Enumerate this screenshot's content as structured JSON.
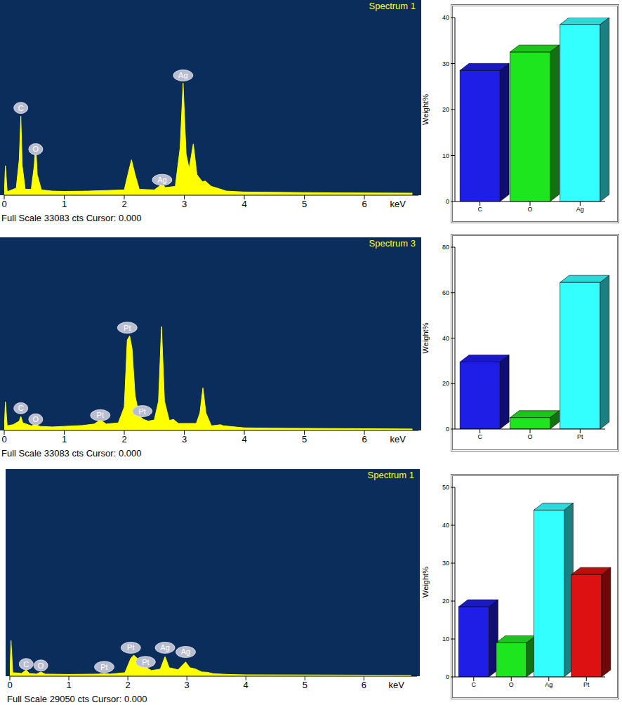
{
  "chart_data": [
    {
      "type": "area",
      "title": "Spectrum 1",
      "subtitle": "Full Scale 33083 cts Cursor: 0.000",
      "x_label": "keV",
      "color": "#ffff00",
      "x": [
        0,
        0.02,
        0.05,
        0.1,
        0.2,
        0.25,
        0.277,
        0.3,
        0.35,
        0.45,
        0.5,
        0.525,
        0.55,
        0.62,
        0.8,
        1.0,
        1.4,
        1.7,
        2.0,
        2.06,
        2.12,
        2.18,
        2.25,
        2.5,
        2.58,
        2.63,
        2.68,
        2.85,
        2.93,
        2.98,
        3.03,
        3.08,
        3.15,
        3.21,
        3.3,
        3.35,
        3.45,
        3.55,
        3.7,
        4.0,
        4.5,
        5.0,
        5.5,
        6.0,
        6.8
      ],
      "values": [
        0,
        5000,
        600,
        800,
        1200,
        6000,
        13400,
        5000,
        1000,
        1000,
        5000,
        8700,
        3500,
        900,
        700,
        650,
        700,
        800,
        900,
        3500,
        6000,
        3500,
        1000,
        900,
        1500,
        2100,
        1300,
        1500,
        8000,
        19000,
        7000,
        4500,
        8700,
        3500,
        2300,
        2400,
        1500,
        1200,
        700,
        550,
        500,
        450,
        400,
        380,
        350
      ],
      "xlim": [
        0,
        6.9
      ],
      "xticks": [
        0,
        1,
        2,
        3,
        4,
        5,
        6
      ],
      "ylim": [
        0,
        33083
      ],
      "tick_labels": "x",
      "annotations": [
        {
          "text": "C",
          "x": 0.277,
          "y": 14800
        },
        {
          "text": "O",
          "x": 0.525,
          "y": 7800
        },
        {
          "text": "Ag",
          "x": 2.63,
          "y": 2600
        },
        {
          "text": "Ag",
          "x": 2.98,
          "y": 20300
        }
      ]
    },
    {
      "type": "bar",
      "y_label": "Weight%",
      "categories": [
        "C",
        "O",
        "Ag"
      ],
      "values": [
        28.5,
        32.5,
        38.5
      ],
      "colors": [
        "#1e1ee6",
        "#1ee61e",
        "#33ffff"
      ],
      "ylim": [
        0,
        40
      ],
      "yticks": [
        0,
        10,
        20,
        30,
        40
      ]
    },
    {
      "type": "area",
      "title": "Spectrum 3",
      "subtitle": "Full Scale 33083 cts Cursor: 0.000",
      "x_label": "keV",
      "color": "#ffff00",
      "x": [
        0,
        0.02,
        0.05,
        0.15,
        0.25,
        0.277,
        0.31,
        0.45,
        0.525,
        0.6,
        0.8,
        1.0,
        1.3,
        1.5,
        1.6,
        1.7,
        1.9,
        2.0,
        2.05,
        2.09,
        2.13,
        2.18,
        2.25,
        2.32,
        2.4,
        2.5,
        2.57,
        2.62,
        2.67,
        2.75,
        2.82,
        2.9,
        3.2,
        3.26,
        3.31,
        3.36,
        3.45,
        3.55,
        3.6,
        3.65,
        4.0,
        4.5,
        5.0,
        6.0,
        6.8
      ],
      "values": [
        0,
        4900,
        800,
        1000,
        1600,
        2400,
        1300,
        800,
        1000,
        700,
        600,
        700,
        850,
        1100,
        1800,
        1100,
        1300,
        4000,
        15500,
        16200,
        14000,
        6000,
        2500,
        1900,
        1600,
        1800,
        5000,
        17800,
        5000,
        1700,
        1900,
        1200,
        1200,
        3000,
        7300,
        3000,
        800,
        900,
        1000,
        800,
        450,
        380,
        350,
        300,
        250
      ],
      "xlim": [
        0,
        6.9
      ],
      "xticks": [
        0,
        1,
        2,
        3,
        4,
        5,
        6
      ],
      "ylim": [
        0,
        33083
      ],
      "tick_labels": "x",
      "annotations": [
        {
          "text": "C",
          "x": 0.277,
          "y": 3800
        },
        {
          "text": "O",
          "x": 0.525,
          "y": 1900
        },
        {
          "text": "Pt",
          "x": 1.6,
          "y": 2600
        },
        {
          "text": "Pt",
          "x": 2.05,
          "y": 17600
        },
        {
          "text": "Pt",
          "x": 2.3,
          "y": 3300
        }
      ]
    },
    {
      "type": "bar",
      "y_label": "Weight%",
      "categories": [
        "C",
        "O",
        "Pt"
      ],
      "values": [
        29.5,
        5,
        64.5
      ],
      "colors": [
        "#1e1ee6",
        "#1ee61e",
        "#33ffff"
      ],
      "ylim": [
        0,
        80
      ],
      "yticks": [
        0,
        20,
        40,
        60,
        80
      ]
    },
    {
      "type": "area",
      "title": "Spectrum 1",
      "subtitle": "Full Scale 29050 cts Cursor: 0.000",
      "x_label": "keV",
      "color": "#ffff00",
      "x": [
        0,
        0.02,
        0.05,
        0.2,
        0.277,
        0.33,
        0.45,
        0.525,
        0.6,
        1.0,
        1.5,
        1.6,
        1.7,
        1.95,
        2.05,
        2.1,
        2.16,
        2.25,
        2.3,
        2.4,
        2.55,
        2.63,
        2.7,
        2.85,
        2.98,
        3.05,
        3.15,
        3.25,
        3.35,
        3.45,
        3.7,
        4.0,
        5.0,
        6.0,
        6.8
      ],
      "values": [
        0,
        5000,
        500,
        400,
        900,
        400,
        300,
        600,
        300,
        250,
        300,
        400,
        300,
        500,
        2500,
        2950,
        2500,
        1200,
        1300,
        800,
        1000,
        2750,
        1200,
        900,
        2000,
        1200,
        1000,
        600,
        550,
        350,
        250,
        200,
        180,
        150,
        130
      ],
      "xlim": [
        0,
        6.9
      ],
      "xticks": [
        0,
        1,
        2,
        3,
        4,
        5,
        6
      ],
      "ylim": [
        0,
        29050
      ],
      "tick_labels": "x",
      "annotations": [
        {
          "text": "C",
          "x": 0.277,
          "y": 1700
        },
        {
          "text": "O",
          "x": 0.525,
          "y": 1500
        },
        {
          "text": "Pt",
          "x": 1.6,
          "y": 1300
        },
        {
          "text": "Pt",
          "x": 2.05,
          "y": 4000
        },
        {
          "text": "Pt",
          "x": 2.3,
          "y": 2000
        },
        {
          "text": "Ag",
          "x": 2.63,
          "y": 4000
        },
        {
          "text": "Ag",
          "x": 2.98,
          "y": 3400
        }
      ]
    },
    {
      "type": "bar",
      "y_label": "Weight%",
      "categories": [
        "C",
        "O",
        "Ag",
        "Pt"
      ],
      "values": [
        18.5,
        9,
        44,
        27
      ],
      "colors": [
        "#1e1ee6",
        "#1ee61e",
        "#33ffff",
        "#dd1111"
      ],
      "ylim": [
        0,
        50
      ],
      "yticks": [
        0,
        10,
        20,
        30,
        40,
        50
      ]
    }
  ]
}
